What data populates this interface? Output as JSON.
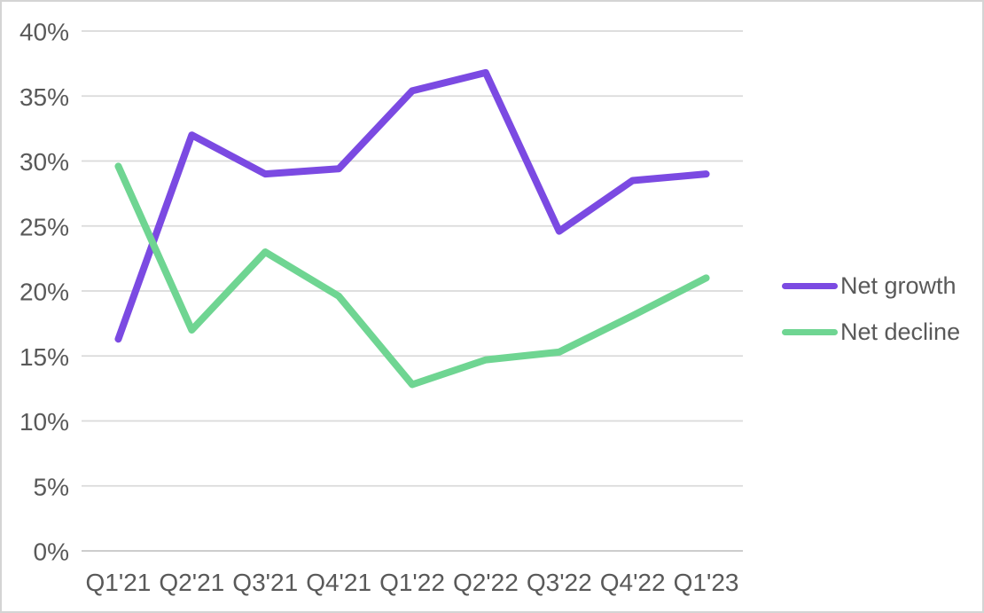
{
  "chart_data": {
    "type": "line",
    "title": "",
    "xlabel": "",
    "ylabel": "",
    "categories": [
      "Q1'21",
      "Q2'21",
      "Q3'21",
      "Q4'21",
      "Q1'22",
      "Q2'22",
      "Q3'22",
      "Q4'22",
      "Q1'23"
    ],
    "series": [
      {
        "name": "Net growth",
        "color": "#7b4ae2",
        "values": [
          16.3,
          32.0,
          29.0,
          29.4,
          35.4,
          36.8,
          24.6,
          28.5,
          29.0
        ]
      },
      {
        "name": "Net decline",
        "color": "#6fd592",
        "values": [
          29.6,
          17.0,
          23.0,
          19.6,
          12.8,
          14.7,
          15.3,
          18.1,
          21.0
        ]
      }
    ],
    "ylim": [
      0,
      40
    ],
    "ytick_step": 5,
    "yticks": [
      {
        "value": 0,
        "label": "0%"
      },
      {
        "value": 5,
        "label": "5%"
      },
      {
        "value": 10,
        "label": "10%"
      },
      {
        "value": 15,
        "label": "15%"
      },
      {
        "value": 20,
        "label": "20%"
      },
      {
        "value": 25,
        "label": "25%"
      },
      {
        "value": 30,
        "label": "30%"
      },
      {
        "value": 35,
        "label": "35%"
      },
      {
        "value": 40,
        "label": "40%"
      }
    ],
    "grid": "horizontal",
    "legend_position": "right",
    "colors": {
      "gridline": "#dadada",
      "axis_line": "#c6c6c6",
      "tick_text": "#595959"
    }
  }
}
